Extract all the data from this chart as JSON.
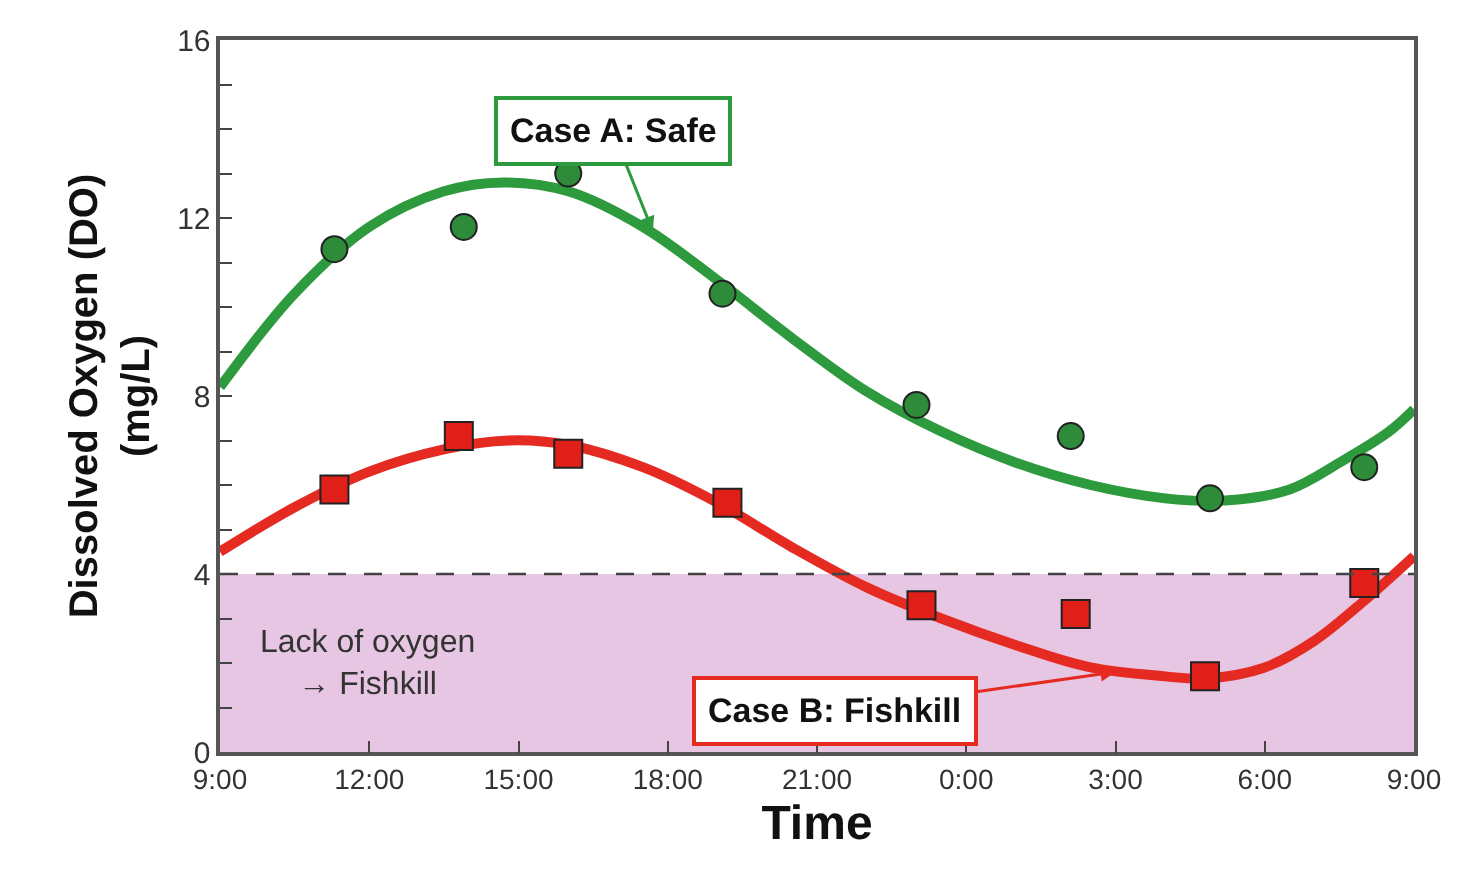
{
  "chart_data": {
    "type": "line",
    "xlabel": "Time",
    "ylabel": "Dissolved Oxygen (DO)\n(mg/L)",
    "xlim": [
      "2000-01-01T09:00",
      "2000-01-02T09:00"
    ],
    "xticks": [
      {
        "value": "2000-01-01T09:00",
        "label": "9:00"
      },
      {
        "value": "2000-01-01T12:00",
        "label": "12:00"
      },
      {
        "value": "2000-01-01T15:00",
        "label": "15:00"
      },
      {
        "value": "2000-01-01T18:00",
        "label": "18:00"
      },
      {
        "value": "2000-01-01T21:00",
        "label": "21:00"
      },
      {
        "value": "2000-01-02T00:00",
        "label": "0:00"
      },
      {
        "value": "2000-01-02T03:00",
        "label": "3:00"
      },
      {
        "value": "2000-01-02T06:00",
        "label": "6:00"
      },
      {
        "value": "2000-01-02T09:00",
        "label": "9:00"
      }
    ],
    "ylim": [
      0,
      16
    ],
    "yticks": [
      0,
      {
        "value": 1,
        "label": null
      },
      {
        "value": 2,
        "label": null
      },
      {
        "value": 3,
        "label": null
      },
      4,
      {
        "value": 5,
        "label": null
      },
      {
        "value": 6,
        "label": null
      },
      {
        "value": 7,
        "label": null
      },
      8,
      {
        "value": 9,
        "label": null
      },
      {
        "value": 10,
        "label": null
      },
      {
        "value": 11,
        "label": null
      },
      12,
      {
        "value": 13,
        "label": null
      },
      {
        "value": 14,
        "label": null
      },
      {
        "value": 15,
        "label": null
      },
      16
    ],
    "grid": false,
    "series": [
      {
        "color": "#2e9a3e",
        "line_style": "solid",
        "marker": "none",
        "x": [
          "2000-01-01T09:00",
          "2000-01-01T10:30",
          "2000-01-01T12:00",
          "2000-01-01T13:30",
          "2000-01-01T14:42",
          "2000-01-01T16:00",
          "2000-01-01T17:30",
          "2000-01-01T19:00",
          "2000-01-01T20:30",
          "2000-01-01T22:00",
          "2000-01-01T23:30",
          "2000-01-02T01:00",
          "2000-01-02T02:30",
          "2000-01-02T04:00",
          "2000-01-02T05:12",
          "2000-01-02T06:30",
          "2000-01-02T07:30",
          "2000-01-02T08:30",
          "2000-01-02T09:00"
        ],
        "values": [
          8.2,
          10.3,
          11.8,
          12.6,
          12.8,
          12.6,
          11.8,
          10.6,
          9.3,
          8.1,
          7.2,
          6.5,
          6.0,
          5.7,
          5.65,
          5.9,
          6.5,
          7.2,
          7.7
        ]
      },
      {
        "color": "#e52a22",
        "line_style": "solid",
        "marker": "none",
        "x": [
          "2000-01-01T09:00",
          "2000-01-01T10:30",
          "2000-01-01T12:00",
          "2000-01-01T13:30",
          "2000-01-01T14:48",
          "2000-01-01T16:00",
          "2000-01-01T17:30",
          "2000-01-01T19:00",
          "2000-01-01T20:30",
          "2000-01-01T22:00",
          "2000-01-01T23:30",
          "2000-01-02T01:00",
          "2000-01-02T02:30",
          "2000-01-02T04:00",
          "2000-01-02T04:48",
          "2000-01-02T06:00",
          "2000-01-02T07:00",
          "2000-01-02T08:00",
          "2000-01-02T09:00"
        ],
        "values": [
          4.5,
          5.5,
          6.3,
          6.8,
          7.0,
          6.9,
          6.4,
          5.6,
          4.6,
          3.7,
          3.0,
          2.4,
          1.9,
          1.7,
          1.65,
          1.9,
          2.5,
          3.4,
          4.4
        ]
      },
      {
        "type": "scatter",
        "color": "#2e8b3a",
        "marker": "circle",
        "x": [
          "2000-01-01T11:18",
          "2000-01-01T13:54",
          "2000-01-01T16:00",
          "2000-01-01T19:06",
          "2000-01-01T23:00",
          "2000-01-02T02:06",
          "2000-01-02T04:54",
          "2000-01-02T08:00"
        ],
        "values": [
          11.3,
          11.8,
          13.0,
          10.3,
          7.8,
          7.1,
          5.7,
          6.4
        ]
      },
      {
        "type": "scatter",
        "color": "#e02018",
        "marker": "square",
        "x": [
          "2000-01-01T11:18",
          "2000-01-01T13:48",
          "2000-01-01T16:00",
          "2000-01-01T19:12",
          "2000-01-01T23:06",
          "2000-01-02T02:12",
          "2000-01-02T04:48",
          "2000-01-02T08:00"
        ],
        "values": [
          5.9,
          7.1,
          6.7,
          5.6,
          3.3,
          3.1,
          1.7,
          3.8
        ]
      }
    ],
    "ref_lines": [
      {
        "axis": "y",
        "value": 4,
        "color": "#444444",
        "line_style": "dashed"
      }
    ],
    "bands": [
      {
        "axis": "y",
        "from": 0,
        "to": 4,
        "color": "#e6c6e2",
        "label": "Lack of oxygen\n→ Fishkill"
      }
    ],
    "annotations": [
      {
        "text": "Case A: Safe",
        "x": "2000-01-01T17:42",
        "y": 11.7
      },
      {
        "text": "Case B: Fishkill",
        "x": "2000-01-02T03:00",
        "y": 1.8
      }
    ]
  }
}
